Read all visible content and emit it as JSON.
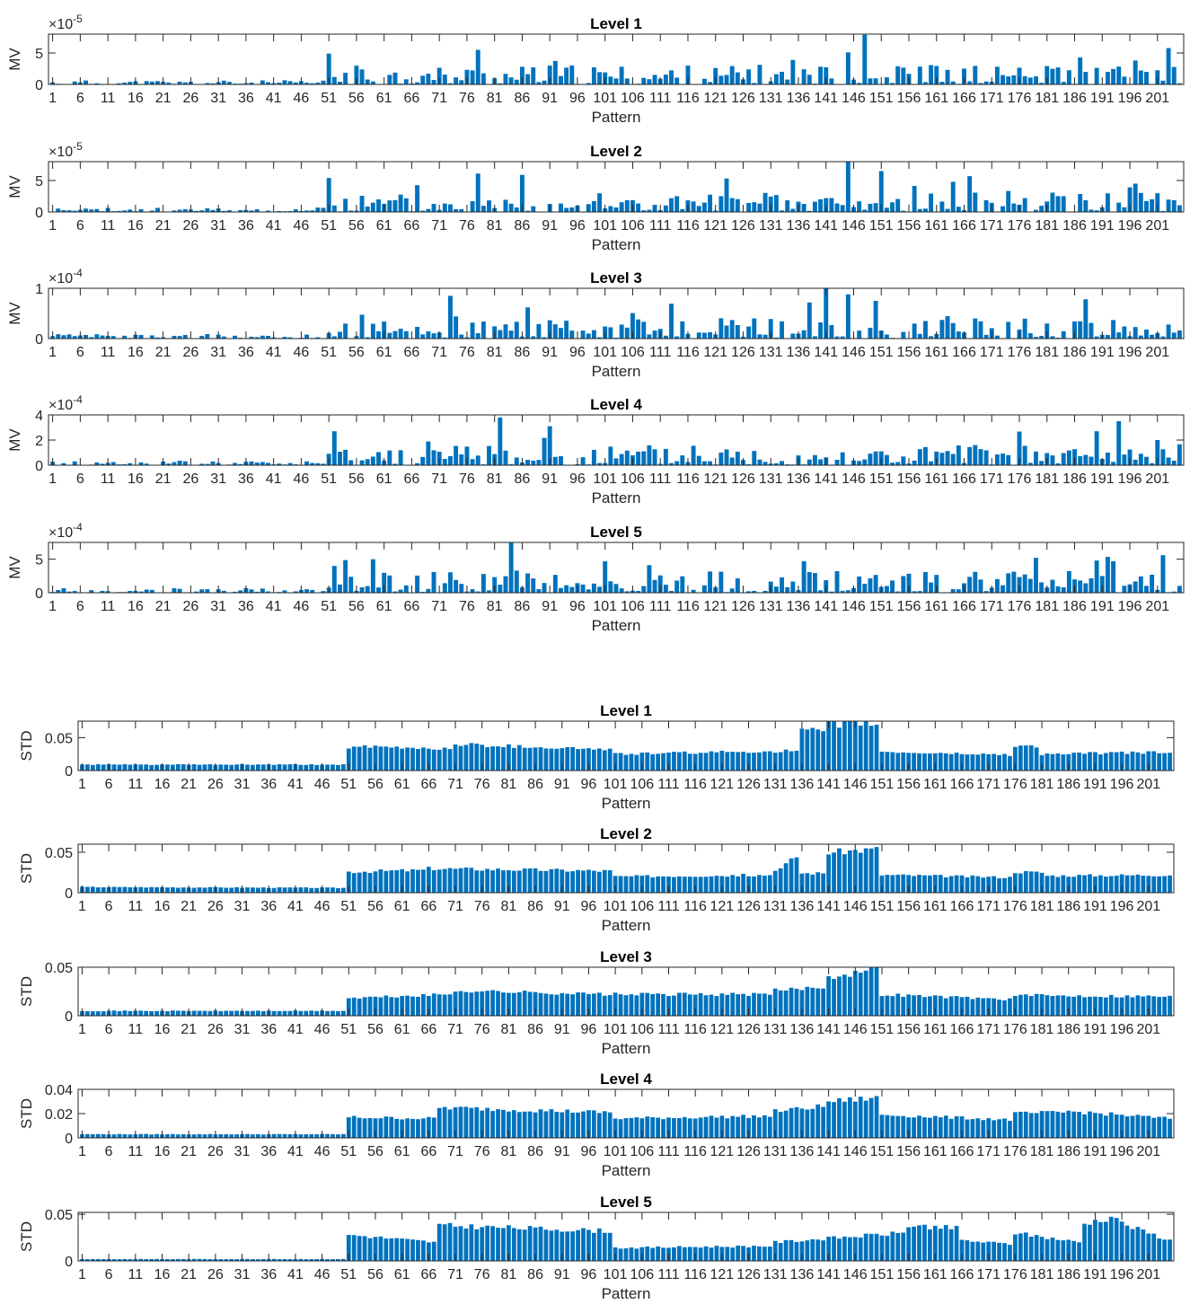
{
  "chart_data": [
    {
      "type": "bar",
      "title": "Level 1",
      "xlabel": "Pattern",
      "ylabel": "MV",
      "exponent": "-5",
      "ylim": [
        0,
        8
      ],
      "yticks": [
        0,
        5
      ],
      "x_start": 1,
      "x_end": 205,
      "xticks": [
        "1",
        "6",
        "11",
        "16",
        "21",
        "26",
        "31",
        "36",
        "41",
        "46",
        "51",
        "56",
        "61",
        "66",
        "71",
        "76",
        "81",
        "86",
        "91",
        "96",
        "101",
        "106",
        "111",
        "116",
        "121",
        "126",
        "131",
        "136",
        "141",
        "146",
        "151",
        "156",
        "161",
        "166",
        "171",
        "176",
        "181",
        "186",
        "191",
        "196",
        "201"
      ],
      "color": "#0072BD",
      "seed": 11,
      "base": 0.55,
      "noise": 0.4,
      "peaks": [
        [
          51,
          4.9
        ],
        [
          78,
          5.5
        ],
        [
          148,
          7.9
        ],
        [
          145,
          5.1
        ],
        [
          197,
          3.8
        ]
      ]
    },
    {
      "type": "bar",
      "title": "Level 2",
      "xlabel": "Pattern",
      "ylabel": "MV",
      "exponent": "-5",
      "ylim": [
        0,
        8
      ],
      "yticks": [
        0,
        5
      ],
      "x_start": 1,
      "x_end": 205,
      "xticks": [
        "1",
        "6",
        "11",
        "16",
        "21",
        "26",
        "31",
        "36",
        "41",
        "46",
        "51",
        "56",
        "61",
        "66",
        "71",
        "76",
        "81",
        "86",
        "91",
        "96",
        "101",
        "106",
        "111",
        "116",
        "121",
        "126",
        "131",
        "136",
        "141",
        "146",
        "151",
        "156",
        "161",
        "166",
        "171",
        "176",
        "181",
        "186",
        "191",
        "196",
        "201"
      ],
      "color": "#0072BD",
      "seed": 23,
      "base": 0.6,
      "noise": 0.45,
      "peaks": [
        [
          51,
          5.4
        ],
        [
          78,
          6.1
        ],
        [
          86,
          5.9
        ],
        [
          145,
          8.0
        ],
        [
          151,
          6.5
        ],
        [
          197,
          4.5
        ]
      ]
    },
    {
      "type": "bar",
      "title": "Level 3",
      "xlabel": "Pattern",
      "ylabel": "MV",
      "exponent": "-4",
      "ylim": [
        0,
        1
      ],
      "yticks": [
        0,
        1
      ],
      "x_start": 1,
      "x_end": 205,
      "xticks": [
        "1",
        "6",
        "11",
        "16",
        "21",
        "26",
        "31",
        "36",
        "41",
        "46",
        "51",
        "56",
        "61",
        "66",
        "71",
        "76",
        "81",
        "86",
        "91",
        "96",
        "101",
        "106",
        "111",
        "116",
        "121",
        "126",
        "131",
        "136",
        "141",
        "146",
        "151",
        "156",
        "161",
        "166",
        "171",
        "176",
        "181",
        "186",
        "191",
        "196",
        "201"
      ],
      "color": "#0072BD",
      "seed": 37,
      "base": 0.45,
      "noise": 0.5,
      "peaks": [
        [
          73,
          0.85
        ],
        [
          141,
          1.0
        ],
        [
          145,
          0.88
        ],
        [
          150,
          0.75
        ],
        [
          87,
          0.62
        ]
      ]
    },
    {
      "type": "bar",
      "title": "Level 4",
      "xlabel": "Pattern",
      "ylabel": "MV",
      "exponent": "-4",
      "ylim": [
        0,
        4
      ],
      "yticks": [
        0,
        2,
        4
      ],
      "x_start": 1,
      "x_end": 205,
      "xticks": [
        "1",
        "6",
        "11",
        "16",
        "21",
        "26",
        "31",
        "36",
        "41",
        "46",
        "51",
        "56",
        "61",
        "66",
        "71",
        "76",
        "81",
        "86",
        "91",
        "96",
        "101",
        "106",
        "111",
        "116",
        "121",
        "126",
        "131",
        "136",
        "141",
        "146",
        "151",
        "156",
        "161",
        "166",
        "171",
        "176",
        "181",
        "186",
        "191",
        "196",
        "201"
      ],
      "color": "#0072BD",
      "seed": 41,
      "base": 0.5,
      "noise": 0.5,
      "peaks": [
        [
          52,
          2.7
        ],
        [
          82,
          3.8
        ],
        [
          91,
          3.1
        ],
        [
          194,
          3.5
        ],
        [
          190,
          2.7
        ],
        [
          201,
          2.0
        ]
      ]
    },
    {
      "type": "bar",
      "title": "Level 5",
      "xlabel": "Pattern",
      "ylabel": "MV",
      "exponent": "-4",
      "ylim": [
        0,
        7.5
      ],
      "yticks": [
        0,
        5
      ],
      "x_start": 1,
      "x_end": 205,
      "xticks": [
        "1",
        "6",
        "11",
        "16",
        "21",
        "26",
        "31",
        "36",
        "41",
        "46",
        "51",
        "56",
        "61",
        "66",
        "71",
        "76",
        "81",
        "86",
        "91",
        "96",
        "101",
        "106",
        "111",
        "116",
        "121",
        "126",
        "131",
        "136",
        "141",
        "146",
        "151",
        "156",
        "161",
        "166",
        "171",
        "176",
        "181",
        "186",
        "191",
        "196",
        "201"
      ],
      "color": "#0072BD",
      "seed": 53,
      "base": 0.4,
      "noise": 0.55,
      "peaks": [
        [
          52,
          4.0
        ],
        [
          84,
          7.5
        ],
        [
          85,
          3.3
        ],
        [
          179,
          5.2
        ],
        [
          190,
          4.8
        ],
        [
          193,
          4.7
        ],
        [
          202,
          5.6
        ]
      ]
    },
    {
      "type": "bar",
      "title": "Level 1",
      "xlabel": "Pattern",
      "ylabel": "STD",
      "exponent": "",
      "ylim": [
        0,
        0.075
      ],
      "yticks": [
        "0",
        "0.05"
      ],
      "x_start": 1,
      "x_end": 205,
      "xticks": [
        "1",
        "6",
        "11",
        "16",
        "21",
        "26",
        "31",
        "36",
        "41",
        "46",
        "51",
        "56",
        "61",
        "66",
        "71",
        "76",
        "81",
        "86",
        "91",
        "96",
        "101",
        "106",
        "111",
        "116",
        "121",
        "126",
        "131",
        "136",
        "141",
        "146",
        "151",
        "156",
        "161",
        "166",
        "171",
        "176",
        "181",
        "186",
        "191",
        "196",
        "201"
      ],
      "color": "#0072BD",
      "seed": 61,
      "smooth": true,
      "segments": [
        [
          1,
          50,
          0.009,
          0.009
        ],
        [
          51,
          70,
          0.036,
          0.033
        ],
        [
          71,
          100,
          0.04,
          0.032
        ],
        [
          101,
          135,
          0.025,
          0.03
        ],
        [
          136,
          140,
          0.06,
          0.06
        ],
        [
          141,
          150,
          0.07,
          0.072
        ],
        [
          151,
          175,
          0.028,
          0.024
        ],
        [
          176,
          180,
          0.038,
          0.036
        ],
        [
          181,
          205,
          0.025,
          0.028
        ]
      ]
    },
    {
      "type": "bar",
      "title": "Level 2",
      "xlabel": "Pattern",
      "ylabel": "STD",
      "exponent": "",
      "ylim": [
        0,
        0.06
      ],
      "yticks": [
        "0",
        "0.05"
      ],
      "x_start": 1,
      "x_end": 205,
      "xticks": [
        "1",
        "6",
        "11",
        "16",
        "21",
        "26",
        "31",
        "36",
        "41",
        "46",
        "51",
        "56",
        "61",
        "66",
        "71",
        "76",
        "81",
        "86",
        "91",
        "96",
        "101",
        "106",
        "111",
        "116",
        "121",
        "126",
        "131",
        "136",
        "141",
        "146",
        "151",
        "156",
        "161",
        "166",
        "171",
        "176",
        "181",
        "186",
        "191",
        "196",
        "201"
      ],
      "color": "#0072BD",
      "seed": 67,
      "smooth": true,
      "segments": [
        [
          1,
          50,
          0.007,
          0.006
        ],
        [
          51,
          65,
          0.026,
          0.028
        ],
        [
          66,
          100,
          0.03,
          0.027
        ],
        [
          101,
          130,
          0.02,
          0.022
        ],
        [
          131,
          135,
          0.025,
          0.045
        ],
        [
          136,
          140,
          0.024,
          0.024
        ],
        [
          141,
          150,
          0.05,
          0.054
        ],
        [
          151,
          175,
          0.022,
          0.019
        ],
        [
          176,
          181,
          0.026,
          0.025
        ],
        [
          182,
          205,
          0.021,
          0.022
        ]
      ]
    },
    {
      "type": "bar",
      "title": "Level 3",
      "xlabel": "Pattern",
      "ylabel": "STD",
      "exponent": "",
      "ylim": [
        0,
        0.05
      ],
      "yticks": [
        "0",
        "0.05"
      ],
      "x_start": 1,
      "x_end": 205,
      "xticks": [
        "1",
        "6",
        "11",
        "16",
        "21",
        "26",
        "31",
        "36",
        "41",
        "46",
        "51",
        "56",
        "61",
        "66",
        "71",
        "76",
        "81",
        "86",
        "91",
        "96",
        "101",
        "106",
        "111",
        "116",
        "121",
        "126",
        "131",
        "136",
        "141",
        "146",
        "151",
        "156",
        "161",
        "166",
        "171",
        "176",
        "181",
        "186",
        "191",
        "196",
        "201"
      ],
      "color": "#0072BD",
      "seed": 71,
      "smooth": true,
      "segments": [
        [
          1,
          50,
          0.005,
          0.005
        ],
        [
          51,
          70,
          0.018,
          0.022
        ],
        [
          71,
          100,
          0.026,
          0.022
        ],
        [
          101,
          130,
          0.022,
          0.022
        ],
        [
          131,
          140,
          0.026,
          0.03
        ],
        [
          141,
          150,
          0.04,
          0.048
        ],
        [
          151,
          175,
          0.022,
          0.017
        ],
        [
          176,
          205,
          0.021,
          0.02
        ]
      ]
    },
    {
      "type": "bar",
      "title": "Level 4",
      "xlabel": "Pattern",
      "ylabel": "STD",
      "exponent": "",
      "ylim": [
        0,
        0.04
      ],
      "yticks": [
        "0",
        "0.02",
        "0.04"
      ],
      "x_start": 1,
      "x_end": 205,
      "xticks": [
        "1",
        "6",
        "11",
        "16",
        "21",
        "26",
        "31",
        "36",
        "41",
        "46",
        "51",
        "56",
        "61",
        "66",
        "71",
        "76",
        "81",
        "86",
        "91",
        "96",
        "101",
        "106",
        "111",
        "116",
        "121",
        "126",
        "131",
        "136",
        "141",
        "146",
        "151",
        "156",
        "161",
        "166",
        "171",
        "176",
        "181",
        "186",
        "191",
        "196",
        "201"
      ],
      "color": "#0072BD",
      "seed": 79,
      "smooth": true,
      "segments": [
        [
          1,
          50,
          0.003,
          0.003
        ],
        [
          51,
          67,
          0.017,
          0.016
        ],
        [
          68,
          100,
          0.025,
          0.021
        ],
        [
          101,
          130,
          0.016,
          0.018
        ],
        [
          131,
          140,
          0.022,
          0.026
        ],
        [
          141,
          150,
          0.03,
          0.033
        ],
        [
          151,
          175,
          0.019,
          0.015
        ],
        [
          176,
          185,
          0.02,
          0.021
        ],
        [
          186,
          205,
          0.022,
          0.016
        ]
      ]
    },
    {
      "type": "bar",
      "title": "Level 5",
      "xlabel": "Pattern",
      "ylabel": "STD",
      "exponent": "",
      "ylim": [
        0,
        0.052
      ],
      "yticks": [
        "0",
        "0.05"
      ],
      "x_start": 1,
      "x_end": 205,
      "xticks": [
        "1",
        "6",
        "11",
        "16",
        "21",
        "26",
        "31",
        "36",
        "41",
        "46",
        "51",
        "56",
        "61",
        "66",
        "71",
        "76",
        "81",
        "86",
        "91",
        "96",
        "101",
        "106",
        "111",
        "116",
        "121",
        "126",
        "131",
        "136",
        "141",
        "146",
        "151",
        "156",
        "161",
        "166",
        "171",
        "176",
        "181",
        "186",
        "191",
        "196",
        "201"
      ],
      "color": "#0072BD",
      "seed": 83,
      "smooth": true,
      "segments": [
        [
          1,
          50,
          0.002,
          0.002
        ],
        [
          51,
          67,
          0.028,
          0.02
        ],
        [
          68,
          100,
          0.038,
          0.032
        ],
        [
          101,
          130,
          0.014,
          0.016
        ],
        [
          131,
          155,
          0.02,
          0.03
        ],
        [
          156,
          165,
          0.038,
          0.035
        ],
        [
          166,
          175,
          0.022,
          0.018
        ],
        [
          176,
          188,
          0.03,
          0.02
        ],
        [
          189,
          195,
          0.04,
          0.048
        ],
        [
          196,
          205,
          0.04,
          0.022
        ]
      ]
    }
  ]
}
